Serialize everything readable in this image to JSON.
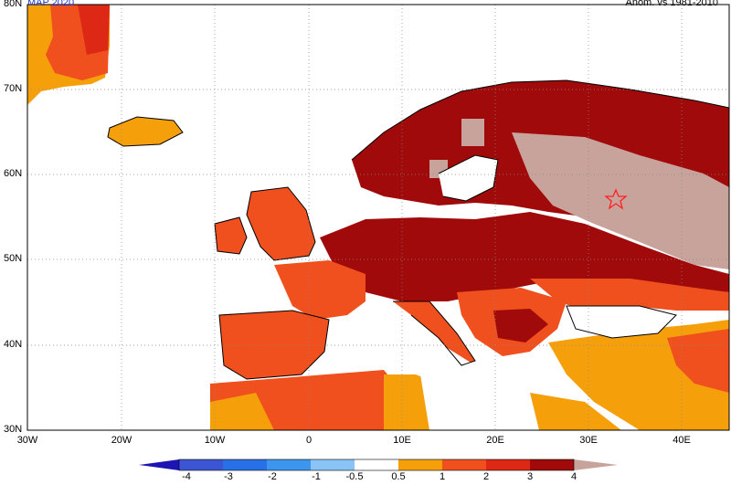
{
  "header": {
    "left_text": "MAP 2020",
    "right_text": "Anom. vs 1981-2010"
  },
  "axes": {
    "lat_labels": [
      "80N",
      "70N",
      "60N",
      "50N",
      "40N",
      "30N"
    ],
    "lon_labels": [
      "30W",
      "20W",
      "10W",
      "0",
      "10E",
      "20E",
      "30E",
      "40E"
    ]
  },
  "legend": {
    "labels": [
      "-4",
      "-3",
      "-2",
      "-1",
      "-0.5",
      "0.5",
      "1",
      "2",
      "3",
      "4"
    ],
    "colors": {
      "neg4": "#1e14b4",
      "neg3": "#3c55d2",
      "neg2": "#2870e6",
      "neg1": "#3c96ee",
      "neg05": "#8ac4f6",
      "pos05": "#f5a00a",
      "pos1": "#f0501e",
      "pos2": "#dc2814",
      "pos3": "#a00a0a",
      "pos4": "#c8a39b"
    }
  },
  "markers": [
    {
      "name": "star-marker",
      "icon": "star-icon",
      "color": "#ff2222"
    }
  ]
}
